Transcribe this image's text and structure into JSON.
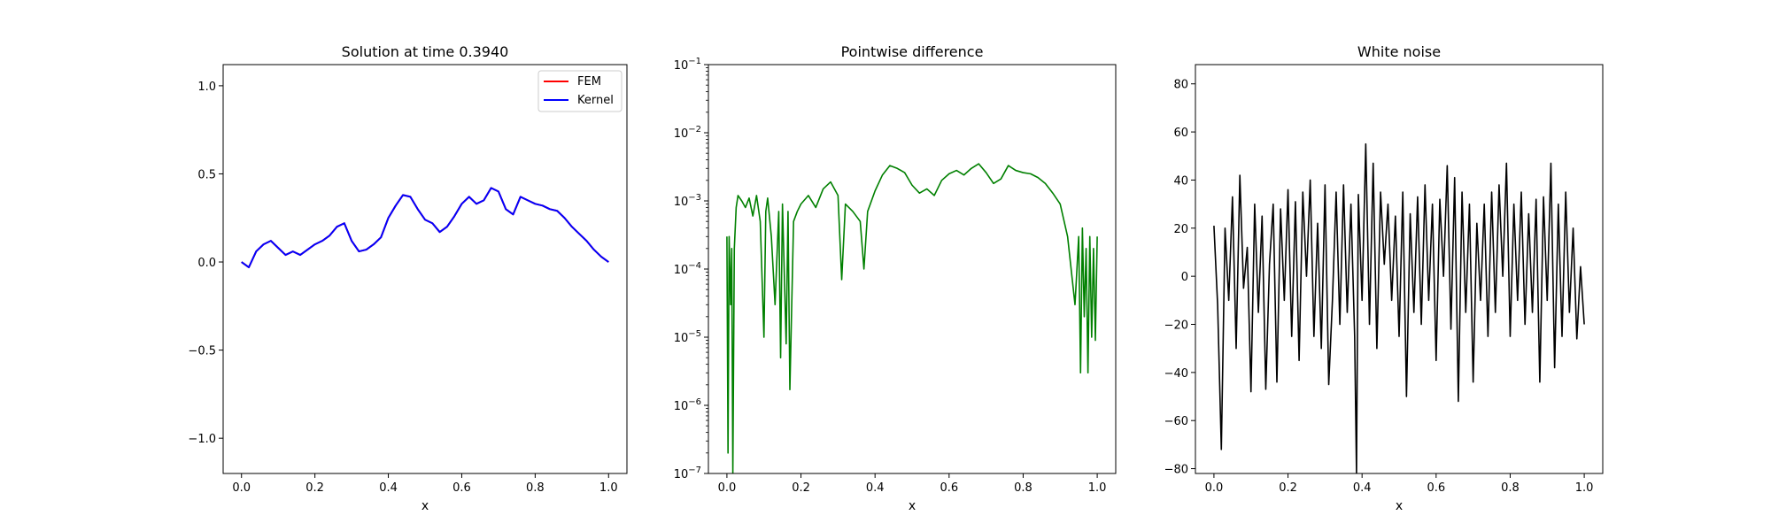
{
  "chart_data": [
    {
      "type": "line",
      "title": "Solution at time 0.3940",
      "xlabel": "x",
      "ylabel": "",
      "xlim": [
        -0.05,
        1.05
      ],
      "ylim": [
        -1.2,
        1.12
      ],
      "x_ticks": [
        0.0,
        0.2,
        0.4,
        0.6,
        0.8,
        1.0
      ],
      "x_tick_labels": [
        "0.0",
        "0.2",
        "0.4",
        "0.6",
        "0.8",
        "1.0"
      ],
      "y_ticks": [
        -1.0,
        -0.5,
        0.0,
        0.5,
        1.0
      ],
      "y_tick_labels": [
        "−1.0",
        "−0.5",
        "0.0",
        "0.5",
        "1.0"
      ],
      "legend_position": "top-right",
      "series": [
        {
          "name": "FEM",
          "color": "#ff0000",
          "x": [
            0.0,
            0.02,
            0.04,
            0.06,
            0.08,
            0.1,
            0.12,
            0.14,
            0.16,
            0.18,
            0.2,
            0.22,
            0.24,
            0.26,
            0.28,
            0.3,
            0.32,
            0.34,
            0.36,
            0.38,
            0.4,
            0.42,
            0.44,
            0.46,
            0.48,
            0.5,
            0.52,
            0.54,
            0.56,
            0.58,
            0.6,
            0.62,
            0.64,
            0.66,
            0.68,
            0.7,
            0.72,
            0.74,
            0.76,
            0.78,
            0.8,
            0.82,
            0.84,
            0.86,
            0.88,
            0.9,
            0.92,
            0.94,
            0.96,
            0.98,
            1.0
          ],
          "values": [
            0.0,
            -0.03,
            0.06,
            0.1,
            0.12,
            0.08,
            0.04,
            0.06,
            0.04,
            0.07,
            0.1,
            0.12,
            0.15,
            0.2,
            0.22,
            0.12,
            0.06,
            0.07,
            0.1,
            0.14,
            0.25,
            0.32,
            0.38,
            0.37,
            0.3,
            0.24,
            0.22,
            0.17,
            0.2,
            0.26,
            0.33,
            0.37,
            0.33,
            0.35,
            0.42,
            0.4,
            0.3,
            0.27,
            0.37,
            0.35,
            0.33,
            0.32,
            0.3,
            0.29,
            0.25,
            0.2,
            0.16,
            0.12,
            0.07,
            0.03,
            0.0
          ]
        },
        {
          "name": "Kernel",
          "color": "#0000ff",
          "x": [
            0.0,
            0.02,
            0.04,
            0.06,
            0.08,
            0.1,
            0.12,
            0.14,
            0.16,
            0.18,
            0.2,
            0.22,
            0.24,
            0.26,
            0.28,
            0.3,
            0.32,
            0.34,
            0.36,
            0.38,
            0.4,
            0.42,
            0.44,
            0.46,
            0.48,
            0.5,
            0.52,
            0.54,
            0.56,
            0.58,
            0.6,
            0.62,
            0.64,
            0.66,
            0.68,
            0.7,
            0.72,
            0.74,
            0.76,
            0.78,
            0.8,
            0.82,
            0.84,
            0.86,
            0.88,
            0.9,
            0.92,
            0.94,
            0.96,
            0.98,
            1.0
          ],
          "values": [
            0.0,
            -0.03,
            0.06,
            0.1,
            0.12,
            0.08,
            0.04,
            0.06,
            0.04,
            0.07,
            0.1,
            0.12,
            0.15,
            0.2,
            0.22,
            0.12,
            0.06,
            0.07,
            0.1,
            0.14,
            0.25,
            0.32,
            0.38,
            0.37,
            0.3,
            0.24,
            0.22,
            0.17,
            0.2,
            0.26,
            0.33,
            0.37,
            0.33,
            0.35,
            0.42,
            0.4,
            0.3,
            0.27,
            0.37,
            0.35,
            0.33,
            0.32,
            0.3,
            0.29,
            0.25,
            0.2,
            0.16,
            0.12,
            0.07,
            0.03,
            0.0
          ]
        }
      ]
    },
    {
      "type": "line",
      "title": "Pointwise difference",
      "xlabel": "x",
      "ylabel": "",
      "y_scale": "log",
      "xlim": [
        -0.05,
        1.05
      ],
      "ylim": [
        1e-07,
        0.1
      ],
      "x_ticks": [
        0.0,
        0.2,
        0.4,
        0.6,
        0.8,
        1.0
      ],
      "x_tick_labels": [
        "0.0",
        "0.2",
        "0.4",
        "0.6",
        "0.8",
        "1.0"
      ],
      "y_ticks": [
        1e-07,
        1e-06,
        1e-05,
        0.0001,
        0.001,
        0.01,
        0.1
      ],
      "y_tick_labels": [
        {
          "base": "10",
          "exp": "−7"
        },
        {
          "base": "10",
          "exp": "−6"
        },
        {
          "base": "10",
          "exp": "−5"
        },
        {
          "base": "10",
          "exp": "−4"
        },
        {
          "base": "10",
          "exp": "−3"
        },
        {
          "base": "10",
          "exp": "−2"
        },
        {
          "base": "10",
          "exp": "−1"
        }
      ],
      "series": [
        {
          "color": "#008000",
          "x": [
            0.0,
            0.003,
            0.006,
            0.01,
            0.013,
            0.016,
            0.02,
            0.025,
            0.03,
            0.04,
            0.05,
            0.06,
            0.07,
            0.08,
            0.09,
            0.1,
            0.105,
            0.11,
            0.12,
            0.13,
            0.14,
            0.145,
            0.15,
            0.16,
            0.165,
            0.17,
            0.18,
            0.19,
            0.2,
            0.22,
            0.24,
            0.26,
            0.28,
            0.3,
            0.31,
            0.32,
            0.34,
            0.36,
            0.37,
            0.38,
            0.4,
            0.42,
            0.44,
            0.46,
            0.48,
            0.5,
            0.52,
            0.54,
            0.56,
            0.58,
            0.6,
            0.62,
            0.64,
            0.66,
            0.68,
            0.7,
            0.72,
            0.74,
            0.76,
            0.78,
            0.8,
            0.82,
            0.84,
            0.86,
            0.88,
            0.9,
            0.92,
            0.94,
            0.95,
            0.955,
            0.96,
            0.965,
            0.97,
            0.975,
            0.98,
            0.985,
            0.99,
            0.995,
            1.0
          ],
          "values": [
            0.0003,
            2e-07,
            0.0003,
            3e-05,
            0.0002,
            1e-07,
            0.0002,
            0.0008,
            0.0012,
            0.001,
            0.0008,
            0.0011,
            0.0006,
            0.0012,
            0.0005,
            1e-05,
            0.0007,
            0.0011,
            0.0003,
            3e-05,
            0.0007,
            5e-06,
            0.0009,
            8e-06,
            0.0007,
            1.7e-06,
            0.0005,
            0.0007,
            0.0009,
            0.0012,
            0.0008,
            0.0015,
            0.0019,
            0.0012,
            7e-05,
            0.0009,
            0.0007,
            0.0005,
            0.0001,
            0.0007,
            0.0014,
            0.0024,
            0.0033,
            0.003,
            0.0026,
            0.0017,
            0.0013,
            0.0015,
            0.0012,
            0.002,
            0.0025,
            0.0028,
            0.0024,
            0.003,
            0.0035,
            0.0026,
            0.0018,
            0.0021,
            0.0033,
            0.0028,
            0.0026,
            0.0025,
            0.0022,
            0.0018,
            0.0013,
            0.0009,
            0.0003,
            3e-05,
            0.0003,
            3e-06,
            0.0004,
            2e-05,
            0.0002,
            3e-06,
            0.0003,
            1e-05,
            0.0002,
            9e-06,
            0.0003
          ]
        }
      ]
    },
    {
      "type": "line",
      "title": "White noise",
      "xlabel": "x",
      "ylabel": "",
      "xlim": [
        -0.05,
        1.05
      ],
      "ylim": [
        -82,
        88
      ],
      "x_ticks": [
        0.0,
        0.2,
        0.4,
        0.6,
        0.8,
        1.0
      ],
      "x_tick_labels": [
        "0.0",
        "0.2",
        "0.4",
        "0.6",
        "0.8",
        "1.0"
      ],
      "y_ticks": [
        -80,
        -60,
        -40,
        -20,
        0,
        20,
        40,
        60,
        80
      ],
      "y_tick_labels": [
        "−80",
        "−60",
        "−40",
        "−20",
        "0",
        "20",
        "40",
        "60",
        "80"
      ],
      "series": [
        {
          "color": "#000000",
          "x": [
            0.0,
            0.01,
            0.02,
            0.03,
            0.04,
            0.05,
            0.06,
            0.07,
            0.08,
            0.09,
            0.1,
            0.11,
            0.12,
            0.13,
            0.14,
            0.15,
            0.16,
            0.17,
            0.18,
            0.19,
            0.2,
            0.21,
            0.22,
            0.23,
            0.24,
            0.25,
            0.26,
            0.27,
            0.28,
            0.29,
            0.3,
            0.31,
            0.32,
            0.33,
            0.34,
            0.35,
            0.36,
            0.37,
            0.38,
            0.385,
            0.39,
            0.4,
            0.41,
            0.42,
            0.43,
            0.44,
            0.45,
            0.46,
            0.47,
            0.48,
            0.49,
            0.5,
            0.51,
            0.52,
            0.53,
            0.54,
            0.55,
            0.56,
            0.57,
            0.58,
            0.59,
            0.6,
            0.61,
            0.62,
            0.63,
            0.64,
            0.65,
            0.66,
            0.67,
            0.68,
            0.69,
            0.7,
            0.71,
            0.72,
            0.73,
            0.74,
            0.75,
            0.76,
            0.77,
            0.78,
            0.79,
            0.8,
            0.81,
            0.82,
            0.83,
            0.84,
            0.85,
            0.86,
            0.87,
            0.88,
            0.89,
            0.9,
            0.91,
            0.92,
            0.93,
            0.94,
            0.95,
            0.96,
            0.97,
            0.98,
            0.99,
            1.0
          ],
          "values": [
            21,
            -12,
            -72,
            20,
            -10,
            33,
            -30,
            42,
            -5,
            12,
            -48,
            30,
            -15,
            25,
            -47,
            5,
            30,
            -44,
            28,
            -10,
            36,
            -25,
            31,
            -35,
            35,
            0,
            40,
            -25,
            22,
            -30,
            38,
            -45,
            -10,
            35,
            -20,
            38,
            -15,
            30,
            -25,
            -82,
            34,
            -10,
            55,
            -20,
            47,
            -30,
            35,
            5,
            30,
            -10,
            25,
            -25,
            35,
            -50,
            26,
            -15,
            33,
            -20,
            38,
            -10,
            30,
            -35,
            32,
            0,
            46,
            -22,
            41,
            -52,
            35,
            -15,
            30,
            -44,
            22,
            -10,
            30,
            -25,
            35,
            -15,
            38,
            0,
            47,
            -25,
            30,
            -10,
            35,
            -20,
            26,
            -15,
            32,
            -44,
            33,
            -10,
            47,
            -38,
            30,
            -25,
            35,
            -15,
            20,
            -26,
            4,
            -20
          ]
        }
      ]
    }
  ]
}
